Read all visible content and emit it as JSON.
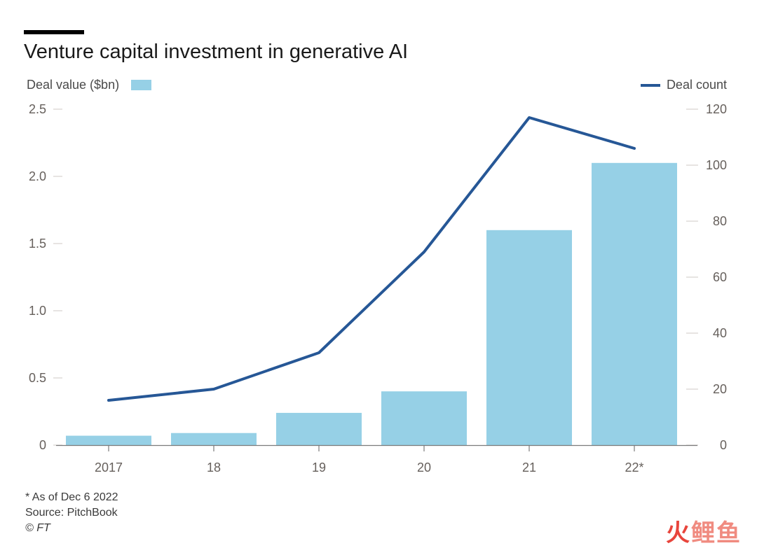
{
  "title": "Venture capital investment in generative AI",
  "legend": {
    "bars_label": "Deal value ($bn)",
    "line_label": "Deal count"
  },
  "footnotes": {
    "note": "* As of Dec 6 2022",
    "source": "Source: PitchBook",
    "credit": "© FT"
  },
  "watermark": "火鲤鱼",
  "colors": {
    "bar": "#96d0e6",
    "line": "#265796",
    "watermark_fire": "#e8453c",
    "watermark_rest": "#f08b80"
  },
  "chart_data": {
    "type": "bar",
    "categories": [
      "2017",
      "18",
      "19",
      "20",
      "21",
      "22*"
    ],
    "series": [
      {
        "name": "Deal value ($bn)",
        "type": "bar",
        "axis": "left",
        "values": [
          0.07,
          0.09,
          0.24,
          0.4,
          1.6,
          2.1
        ]
      },
      {
        "name": "Deal count",
        "type": "line",
        "axis": "right",
        "values": [
          16,
          20,
          33,
          69,
          117,
          106
        ]
      }
    ],
    "y_left": {
      "ylim": [
        0,
        2.5
      ],
      "ticks": [
        "0",
        "0.5",
        "1.0",
        "1.5",
        "2.0",
        "2.5"
      ],
      "tick_values": [
        0,
        0.5,
        1.0,
        1.5,
        2.0,
        2.5
      ]
    },
    "y_right": {
      "ylim": [
        0,
        120
      ],
      "ticks": [
        "0",
        "20",
        "40",
        "60",
        "80",
        "100",
        "120"
      ],
      "tick_values": [
        0,
        20,
        40,
        60,
        80,
        100,
        120
      ]
    },
    "grid": false,
    "legend_placement": "top"
  }
}
